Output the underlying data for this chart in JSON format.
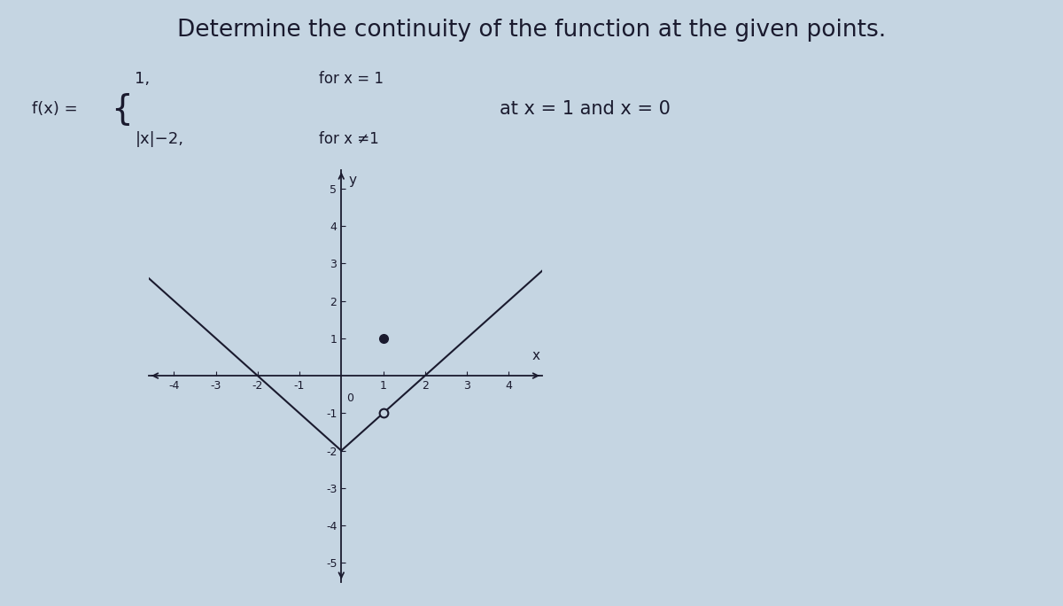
{
  "title": "Determine the continuity of the function at the given points.",
  "at_text": "at x = 1 and x = 0",
  "xlim": [
    -4.6,
    4.8
  ],
  "ylim": [
    -5.5,
    5.5
  ],
  "xticks": [
    -4,
    -3,
    -2,
    -1,
    1,
    2,
    3,
    4
  ],
  "yticks": [
    -5,
    -4,
    -3,
    -2,
    -1,
    1,
    2,
    3,
    4,
    5
  ],
  "bg_color": "#c5d5e2",
  "line_color": "#1a1a2e",
  "dot_size": 7,
  "title_fontsize": 19,
  "tick_fontsize": 9,
  "formula_fontsize": 13,
  "at_fontsize": 15
}
